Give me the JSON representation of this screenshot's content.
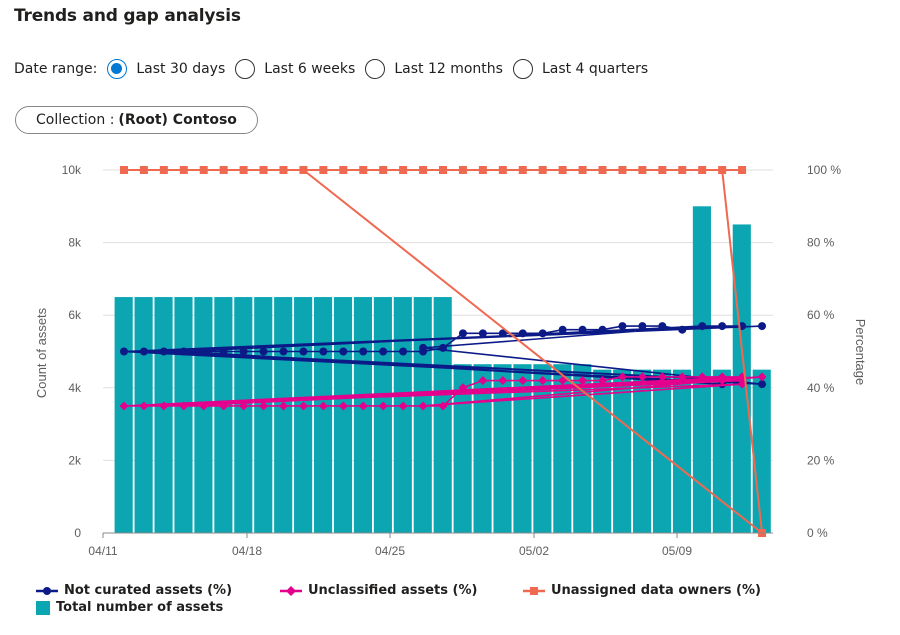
{
  "header": {
    "title": "Trends and gap analysis"
  },
  "date_range": {
    "label": "Date range:",
    "options": [
      {
        "label": "Last 30 days",
        "checked": true
      },
      {
        "label": "Last 6 weeks",
        "checked": false
      },
      {
        "label": "Last 12 months",
        "checked": false
      },
      {
        "label": "Last 4 quarters",
        "checked": false
      }
    ]
  },
  "collection": {
    "label": "Collection :",
    "value": "(Root) Contoso"
  },
  "colors": {
    "bars": "#0ca6b3",
    "not_curated": "#0c1a87",
    "unclassified": "#e3008c",
    "owners": "#ef6950"
  },
  "chart_data": {
    "type": "bar+line",
    "x_ticks": [
      "04/11",
      "04/18",
      "04/25",
      "05/02",
      "05/09"
    ],
    "y_left": {
      "label": "Count of assets",
      "ticks": [
        "0",
        "2k",
        "4k",
        "6k",
        "8k",
        "10k"
      ],
      "range": [
        0,
        10000
      ]
    },
    "y_right": {
      "label": "Percentage",
      "ticks": [
        "0 %",
        "20 %",
        "40 %",
        "60 %",
        "80 %",
        "100 %"
      ],
      "range": [
        0,
        100
      ]
    },
    "bars": {
      "name": "Total number of assets",
      "values": [
        6500,
        6500,
        6500,
        6500,
        6500,
        6500,
        6500,
        6500,
        6500,
        6500,
        6500,
        6500,
        6500,
        6500,
        6500,
        6500,
        6500,
        4650,
        4650,
        4650,
        4650,
        4650,
        4650,
        4650,
        4500,
        4500,
        4500,
        4500,
        4500,
        9000,
        4500,
        8500,
        4500
      ]
    },
    "lines": [
      {
        "name": "Not curated assets (%)",
        "marker": "circle",
        "points": [
          [
            0,
            50
          ],
          [
            1,
            50
          ],
          [
            2,
            50
          ],
          [
            3,
            50
          ],
          [
            4,
            50
          ],
          [
            5,
            50
          ],
          [
            6,
            50
          ],
          [
            7,
            50
          ],
          [
            8,
            50
          ],
          [
            9,
            50
          ],
          [
            10,
            50
          ],
          [
            11,
            50
          ],
          [
            12,
            50
          ],
          [
            13,
            50
          ],
          [
            14,
            50
          ],
          [
            15,
            50
          ],
          [
            16,
            51
          ],
          [
            17,
            55
          ],
          [
            18,
            55
          ],
          [
            19,
            55
          ],
          [
            20,
            55
          ],
          [
            21,
            55
          ],
          [
            22,
            56
          ],
          [
            23,
            56
          ],
          [
            24,
            56
          ],
          [
            25,
            57
          ],
          [
            26,
            57
          ],
          [
            27,
            57
          ],
          [
            28,
            56
          ],
          [
            29,
            57
          ],
          [
            30,
            57
          ],
          [
            31,
            57
          ],
          [
            0,
            50
          ],
          [
            32,
            57
          ],
          [
            1,
            50
          ],
          [
            31,
            42
          ],
          [
            2,
            50
          ],
          [
            30,
            41
          ],
          [
            3,
            50
          ],
          [
            29,
            57
          ],
          [
            15,
            51
          ],
          [
            32,
            41
          ],
          [
            0,
            50
          ]
        ]
      },
      {
        "name": "Unclassified assets (%)",
        "marker": "diamond",
        "points": [
          [
            0,
            35
          ],
          [
            1,
            35
          ],
          [
            2,
            35
          ],
          [
            3,
            35
          ],
          [
            4,
            35
          ],
          [
            5,
            35
          ],
          [
            6,
            35
          ],
          [
            7,
            35
          ],
          [
            8,
            35
          ],
          [
            9,
            35
          ],
          [
            10,
            35
          ],
          [
            11,
            35
          ],
          [
            12,
            35
          ],
          [
            13,
            35
          ],
          [
            14,
            35
          ],
          [
            15,
            35
          ],
          [
            16,
            35
          ],
          [
            17,
            40
          ],
          [
            18,
            42
          ],
          [
            19,
            42
          ],
          [
            20,
            42
          ],
          [
            21,
            42
          ],
          [
            22,
            42
          ],
          [
            23,
            42
          ],
          [
            24,
            42
          ],
          [
            25,
            43
          ],
          [
            26,
            43
          ],
          [
            27,
            43
          ],
          [
            28,
            43
          ],
          [
            29,
            43
          ],
          [
            30,
            43
          ],
          [
            31,
            43
          ],
          [
            0,
            35
          ],
          [
            32,
            43
          ],
          [
            1,
            35
          ],
          [
            31,
            42
          ],
          [
            2,
            35
          ],
          [
            30,
            42
          ],
          [
            3,
            35
          ],
          [
            32,
            43
          ],
          [
            15,
            35
          ],
          [
            31,
            41
          ],
          [
            0,
            35
          ]
        ]
      },
      {
        "name": "Unassigned data owners (%)",
        "marker": "square",
        "points": [
          [
            0,
            100
          ],
          [
            1,
            100
          ],
          [
            2,
            100
          ],
          [
            3,
            100
          ],
          [
            4,
            100
          ],
          [
            5,
            100
          ],
          [
            6,
            100
          ],
          [
            7,
            100
          ],
          [
            8,
            100
          ],
          [
            9,
            100
          ],
          [
            10,
            100
          ],
          [
            11,
            100
          ],
          [
            12,
            100
          ],
          [
            13,
            100
          ],
          [
            14,
            100
          ],
          [
            15,
            100
          ],
          [
            16,
            100
          ],
          [
            17,
            100
          ],
          [
            18,
            100
          ],
          [
            19,
            100
          ],
          [
            20,
            100
          ],
          [
            21,
            100
          ],
          [
            22,
            100
          ],
          [
            23,
            100
          ],
          [
            24,
            100
          ],
          [
            25,
            100
          ],
          [
            26,
            100
          ],
          [
            27,
            100
          ],
          [
            28,
            100
          ],
          [
            29,
            100
          ],
          [
            30,
            100
          ],
          [
            31,
            100
          ],
          [
            9,
            100
          ],
          [
            32,
            0
          ],
          [
            30,
            100
          ],
          [
            32,
            0
          ]
        ]
      }
    ],
    "legend": [
      {
        "name": "Not curated assets (%)",
        "marker": "circle"
      },
      {
        "name": "Unclassified assets (%)",
        "marker": "diamond"
      },
      {
        "name": "Unassigned data owners (%)",
        "marker": "square"
      },
      {
        "name": "Total number of assets",
        "marker": "rect"
      }
    ]
  }
}
